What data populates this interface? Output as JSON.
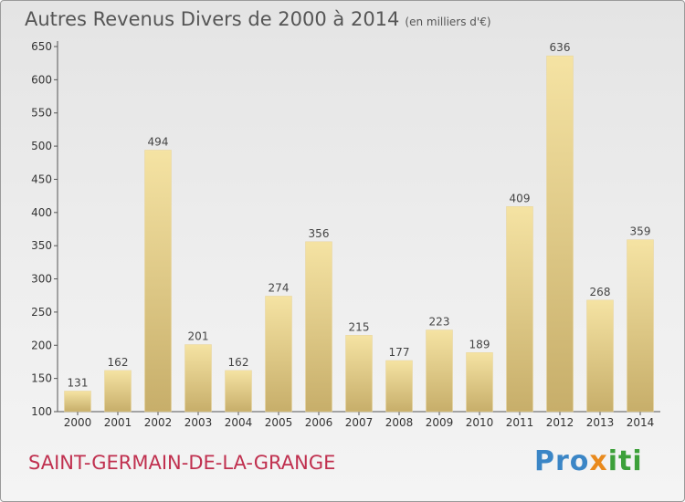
{
  "header": {
    "title": "Autres Revenus Divers de 2000 à 2014",
    "subtitle": "(en milliers d'€)"
  },
  "footer": {
    "commune": "SAINT-GERMAIN-DE-LA-GRANGE",
    "brand_parts": [
      "Pro",
      "x",
      "iti"
    ]
  },
  "colors": {
    "bar_top": "#f5e3a3",
    "bar_bottom": "#c7ae6a",
    "commune_text": "#c0304f"
  },
  "chart_data": {
    "type": "bar",
    "categories": [
      "2000",
      "2001",
      "2002",
      "2003",
      "2004",
      "2005",
      "2006",
      "2007",
      "2008",
      "2009",
      "2010",
      "2011",
      "2012",
      "2013",
      "2014"
    ],
    "values": [
      131,
      162,
      494,
      201,
      162,
      274,
      356,
      215,
      177,
      223,
      189,
      409,
      636,
      268,
      359
    ],
    "data_labels": [
      "131",
      "162",
      "494",
      "201",
      "162",
      "274",
      "356",
      "215",
      "177",
      "223",
      "189",
      "409",
      "636",
      "268",
      "359"
    ],
    "y_ticks": [
      "100",
      "150",
      "200",
      "250",
      "300",
      "350",
      "400",
      "450",
      "500",
      "550",
      "600",
      "650"
    ],
    "ylim": [
      100,
      650
    ],
    "title": "Autres Revenus Divers de 2000 à 2014",
    "xlabel": "",
    "ylabel": "",
    "grid": false,
    "legend": "none"
  }
}
